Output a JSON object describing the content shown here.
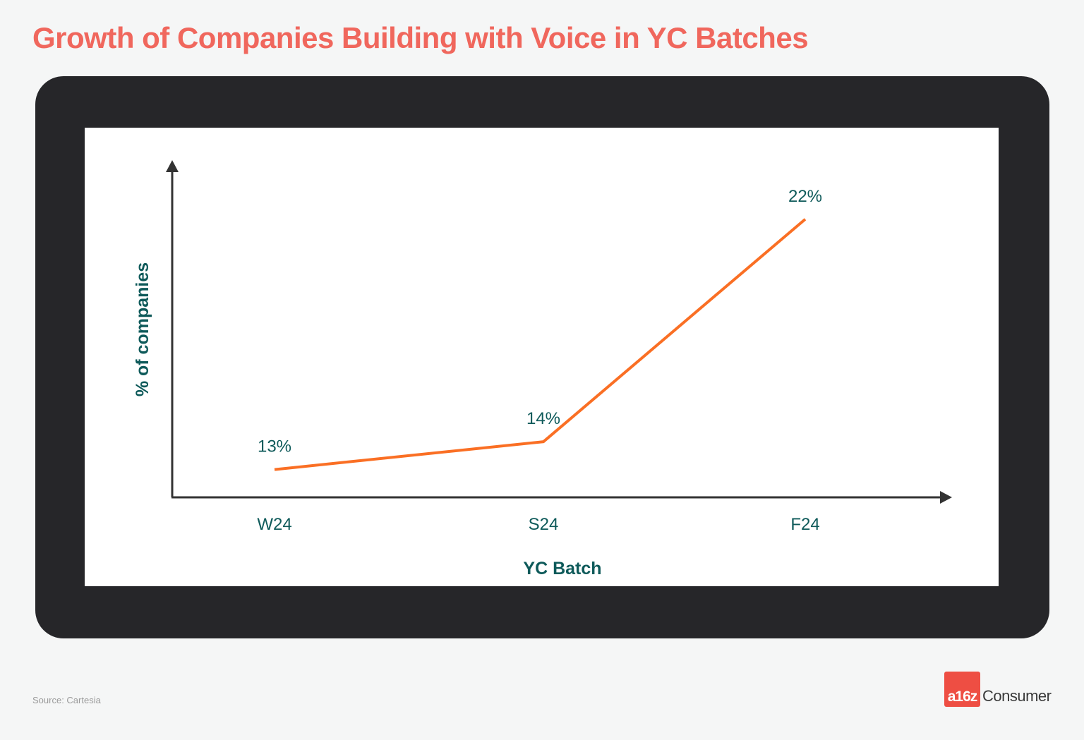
{
  "header": {
    "title": "Growth of Companies Building with Voice in YC Batches"
  },
  "footer": {
    "source": "Source: Cartesia",
    "brand_mark": "a16z",
    "brand_word": "Consumer"
  },
  "colors": {
    "title": "#f0675d",
    "frame": "#262629",
    "line": "#fa6f24",
    "text": "#0e5a5a",
    "axis": "#333333",
    "brand": "#ee4e43"
  },
  "chart_data": {
    "type": "line",
    "categories": [
      "W24",
      "S24",
      "F24"
    ],
    "series": [
      {
        "values": [
          13,
          14,
          22
        ],
        "labels": [
          "13%",
          "14%",
          "22%"
        ]
      }
    ],
    "xlabel": "YC Batch",
    "ylabel": "% of companies",
    "ylim": [
      12,
      22.4
    ],
    "grid": false,
    "legend": "none"
  }
}
